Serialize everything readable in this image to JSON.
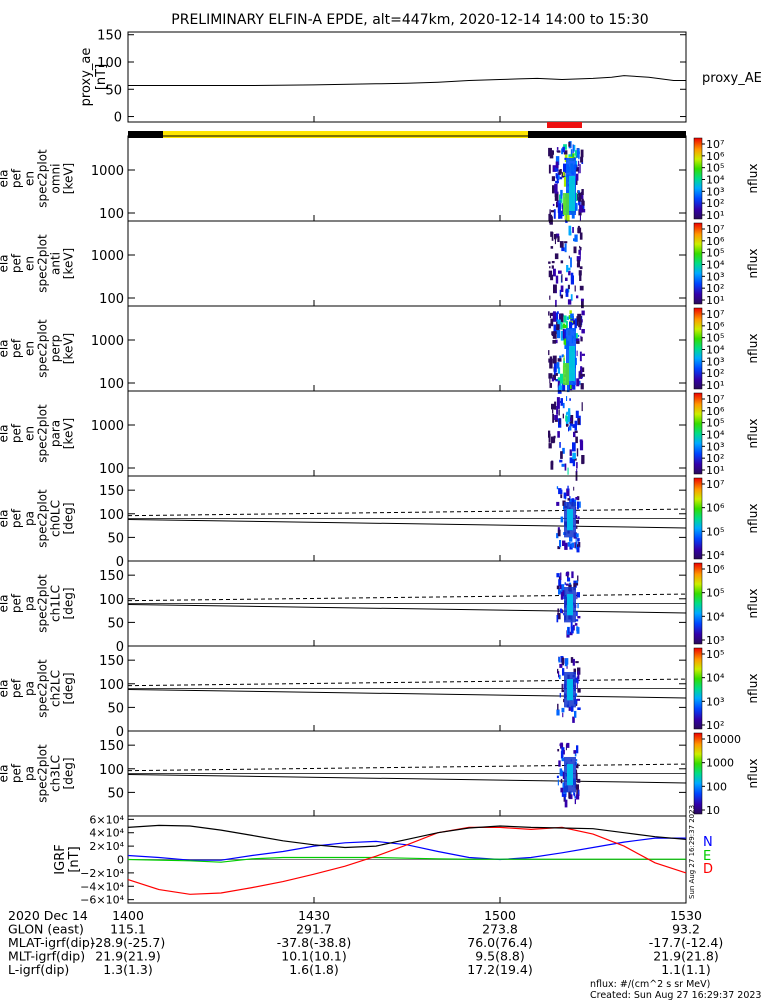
{
  "title": "PRELIMINARY ELFIN-A EPDE, alt=447km, 2020-12-14 14:00 to 15:30",
  "colors": {
    "foreground": "#000000",
    "science_zone_bar": "#ffe600",
    "selection_bar": "#ee1111",
    "igrf_n": "#0000ff",
    "igrf_e": "#00cc00",
    "igrf_d": "#ff0000"
  },
  "chart_data": [
    {
      "type": "line",
      "panel": "proxy_ae",
      "ylabel": [
        "proxy_ae",
        "[nT]"
      ],
      "yticks": [
        "150",
        "100",
        "50",
        "0"
      ],
      "ylim": [
        -10,
        155
      ],
      "right_label": "proxy_AE",
      "x": [
        0,
        10,
        20,
        30,
        40,
        45,
        50,
        55,
        60,
        63,
        66,
        70,
        75,
        78,
        80,
        84,
        88,
        90
      ],
      "values": [
        57,
        57,
        57,
        58,
        60,
        61,
        63,
        66,
        68,
        69,
        70,
        68,
        70,
        72,
        75,
        72,
        66,
        66
      ],
      "xlim": [
        0,
        90
      ]
    },
    {
      "type": "heatmap",
      "panel": "omni energy spectrogram",
      "ylabel": [
        "ela",
        "pef",
        "en",
        "spec2plot",
        "omni",
        "[keV]"
      ],
      "yticks": [
        "1000",
        "100"
      ],
      "scale": "log",
      "colorbar_ticks": [
        "10⁷",
        "10⁶",
        "10⁵",
        "10⁴",
        "10³",
        "10²",
        "10¹"
      ],
      "colorbar_label": "nflux"
    },
    {
      "type": "heatmap",
      "panel": "anti energy spectrogram",
      "ylabel": [
        "ela",
        "pef",
        "en",
        "spec2plot",
        "anti",
        "[keV]"
      ],
      "yticks": [
        "1000",
        "100"
      ],
      "scale": "log",
      "colorbar_ticks": [
        "10⁷",
        "10⁶",
        "10⁵",
        "10⁴",
        "10³",
        "10²",
        "10¹"
      ],
      "colorbar_label": "nflux"
    },
    {
      "type": "heatmap",
      "panel": "perp energy spectrogram",
      "ylabel": [
        "ela",
        "pef",
        "en",
        "spec2plot",
        "perp",
        "[keV]"
      ],
      "yticks": [
        "1000",
        "100"
      ],
      "scale": "log",
      "colorbar_ticks": [
        "10⁷",
        "10⁶",
        "10⁵",
        "10⁴",
        "10³",
        "10²",
        "10¹"
      ],
      "colorbar_label": "nflux"
    },
    {
      "type": "heatmap",
      "panel": "para energy spectrogram",
      "ylabel": [
        "ela",
        "pef",
        "en",
        "spec2plot",
        "para",
        "[keV]"
      ],
      "yticks": [
        "1000",
        "100"
      ],
      "scale": "log",
      "colorbar_ticks": [
        "10⁷",
        "10⁶",
        "10⁵",
        "10⁴",
        "10³",
        "10²",
        "10¹"
      ],
      "colorbar_label": "nflux"
    },
    {
      "type": "heatmap",
      "panel": "ch0LC pitch angle spectrogram",
      "ylabel": [
        "ela",
        "pef",
        "pa",
        "spec2plot",
        "ch0LC",
        "[deg]"
      ],
      "yticks": [
        "150",
        "100",
        "50",
        "0"
      ],
      "ylim": [
        0,
        180
      ],
      "colorbar_ticks": [
        "10⁷",
        "10⁶",
        "10⁵",
        "10⁴"
      ],
      "colorbar_label": "nflux"
    },
    {
      "type": "heatmap",
      "panel": "ch1LC pitch angle spectrogram",
      "ylabel": [
        "ela",
        "pef",
        "pa",
        "spec2plot",
        "ch1LC",
        "[deg]"
      ],
      "yticks": [
        "150",
        "100",
        "50",
        "0"
      ],
      "ylim": [
        0,
        180
      ],
      "colorbar_ticks": [
        "10⁶",
        "10⁵",
        "10⁴",
        "10³"
      ],
      "colorbar_label": "nflux"
    },
    {
      "type": "heatmap",
      "panel": "ch2LC pitch angle spectrogram",
      "ylabel": [
        "ela",
        "pef",
        "pa",
        "spec2plot",
        "ch2LC",
        "[deg]"
      ],
      "yticks": [
        "150",
        "100",
        "50",
        "0"
      ],
      "ylim": [
        0,
        180
      ],
      "colorbar_ticks": [
        "10⁵",
        "10⁴",
        "10³",
        "10²"
      ],
      "colorbar_label": "nflux"
    },
    {
      "type": "heatmap",
      "panel": "ch3LC pitch angle spectrogram",
      "ylabel": [
        "ela",
        "pef",
        "pa",
        "spec2plot",
        "ch3LC",
        "[deg]"
      ],
      "yticks": [
        "150",
        "100",
        "50"
      ],
      "ylim": [
        0,
        180
      ],
      "colorbar_ticks": [
        "10000",
        "1000",
        "100",
        "10"
      ],
      "colorbar_label": "nflux"
    },
    {
      "type": "line",
      "panel": "IGRF",
      "ylabel": [
        "IGRF",
        "[nT]"
      ],
      "yticks": [
        "6×10⁴",
        "4×10⁴",
        "2×10⁴",
        "0",
        "−2×10⁴",
        "−4×10⁴",
        "−6×10⁴"
      ],
      "ylim": [
        -65000,
        65000
      ],
      "x": [
        0,
        5,
        10,
        15,
        20,
        25,
        30,
        35,
        40,
        45,
        50,
        55,
        60,
        65,
        70,
        75,
        80,
        85,
        90
      ],
      "series": [
        {
          "name": "N",
          "color": "#0000ff",
          "values": [
            6000,
            3000,
            -1000,
            -1000,
            6000,
            12000,
            20000,
            25000,
            27000,
            22000,
            12000,
            3000,
            0,
            3000,
            10000,
            18000,
            26000,
            32000,
            32000
          ]
        },
        {
          "name": "E",
          "color": "#00cc00",
          "values": [
            0,
            -1000,
            -2000,
            -4000,
            1000,
            3000,
            3000,
            3000,
            3000,
            2000,
            1000,
            500,
            500,
            500,
            500,
            500,
            500,
            500,
            500
          ]
        },
        {
          "name": "D",
          "color": "#ff0000",
          "values": [
            -30000,
            -45000,
            -52000,
            -50000,
            -42000,
            -33000,
            -22000,
            -10000,
            5000,
            22000,
            40000,
            48000,
            48000,
            45000,
            48000,
            38000,
            20000,
            -5000,
            -20000
          ]
        },
        {
          "name": "",
          "color": "#000000",
          "values": [
            48000,
            51000,
            50000,
            44000,
            36000,
            28000,
            22000,
            18000,
            20000,
            30000,
            40000,
            47000,
            50000,
            48000,
            47000,
            46000,
            40000,
            34000,
            30000
          ]
        }
      ],
      "right_labels": [
        "N",
        "E",
        "D"
      ],
      "footer_stamp": "Sun Aug 27 16:29:37 2023"
    }
  ],
  "axis": {
    "rows": [
      {
        "label": "2020 Dec 14",
        "values": [
          "1400",
          "1430",
          "1500",
          "1530"
        ]
      },
      {
        "label": "GLON (east)",
        "values": [
          "115.1",
          "291.7",
          "273.8",
          "93.2"
        ]
      },
      {
        "label": "MLAT-igrf(dip)",
        "values": [
          "-28.9(-25.7)",
          "-37.8(-38.8)",
          "76.0(76.4)",
          "-17.7(-12.4)"
        ]
      },
      {
        "label": "MLT-igrf(dip)",
        "values": [
          "21.9(21.9)",
          "10.1(10.1)",
          "9.5(8.8)",
          "21.9(21.8)"
        ]
      },
      {
        "label": "L-igrf(dip)",
        "values": [
          "1.3(1.3)",
          "1.6(1.8)",
          "17.2(19.4)",
          "1.1(1.1)"
        ]
      }
    ]
  },
  "footnote": {
    "units": "nflux: #/(cm^2 s sr MeV)",
    "created": "Created: Sun Aug 27 16:29:37 2023"
  }
}
